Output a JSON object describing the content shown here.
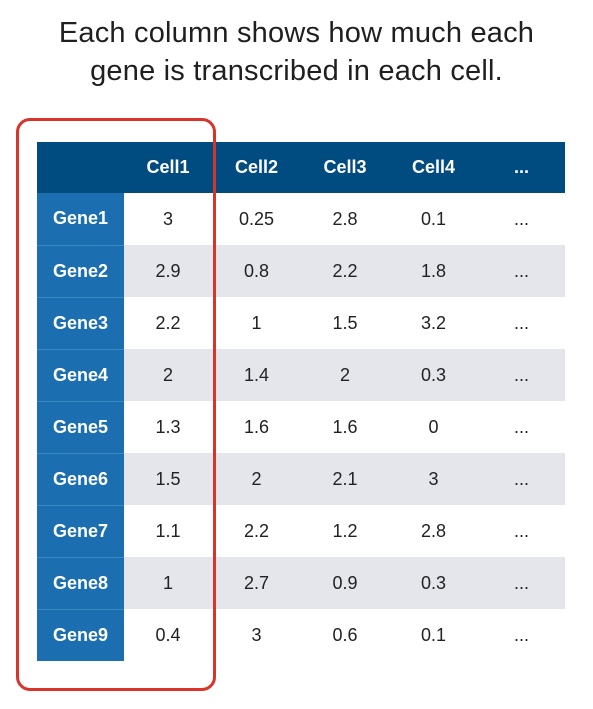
{
  "title": {
    "line1": "Each column shows how much each",
    "line2": "gene is transcribed in each cell."
  },
  "table": {
    "corner": "",
    "columns": [
      "Cell1",
      "Cell2",
      "Cell3",
      "Cell4",
      "..."
    ],
    "rows": [
      {
        "gene": "Gene1",
        "values": [
          "3",
          "0.25",
          "2.8",
          "0.1",
          "..."
        ]
      },
      {
        "gene": "Gene2",
        "values": [
          "2.9",
          "0.8",
          "2.2",
          "1.8",
          "..."
        ]
      },
      {
        "gene": "Gene3",
        "values": [
          "2.2",
          "1",
          "1.5",
          "3.2",
          "..."
        ]
      },
      {
        "gene": "Gene4",
        "values": [
          "2",
          "1.4",
          "2",
          "0.3",
          "..."
        ]
      },
      {
        "gene": "Gene5",
        "values": [
          "1.3",
          "1.6",
          "1.6",
          "0",
          "..."
        ]
      },
      {
        "gene": "Gene6",
        "values": [
          "1.5",
          "2",
          "2.1",
          "3",
          "..."
        ]
      },
      {
        "gene": "Gene7",
        "values": [
          "1.1",
          "2.2",
          "1.2",
          "2.8",
          "..."
        ]
      },
      {
        "gene": "Gene8",
        "values": [
          "1",
          "2.7",
          "0.9",
          "0.3",
          "..."
        ]
      },
      {
        "gene": "Gene9",
        "values": [
          "0.4",
          "3",
          "0.6",
          "0.1",
          "..."
        ]
      }
    ]
  },
  "colors": {
    "header_bg": "#004c80",
    "row_header_bg": "#1b6fb1",
    "stripe_bg": "#e4e6eb",
    "highlight": "#d9342b"
  }
}
